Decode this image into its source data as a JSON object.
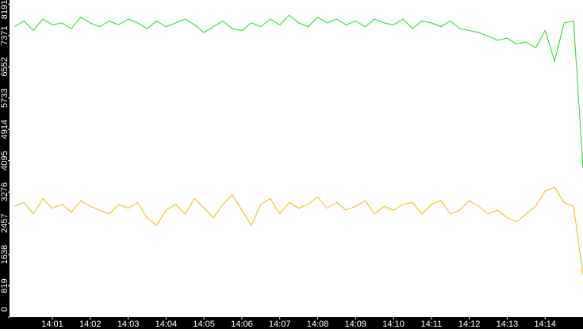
{
  "chart_data": {
    "type": "line",
    "x": [
      840,
      840.25,
      840.5,
      840.75,
      841,
      841.25,
      841.5,
      841.75,
      842,
      842.25,
      842.5,
      842.75,
      843,
      843.25,
      843.5,
      843.75,
      844,
      844.25,
      844.5,
      844.75,
      845,
      845.25,
      845.5,
      845.75,
      846,
      846.25,
      846.5,
      846.75,
      847,
      847.25,
      847.5,
      847.75,
      848,
      848.25,
      848.5,
      848.75,
      849,
      849.25,
      849.5,
      849.75,
      850,
      850.25,
      850.5,
      850.75,
      851,
      851.25,
      851.5,
      851.75,
      852,
      852.25,
      852.5,
      852.75,
      853,
      853.25,
      853.5,
      853.75,
      854,
      854.25,
      854.5,
      854.75,
      855
    ],
    "xlim": [
      839.87,
      855
    ],
    "xticks": [
      {
        "value": 841,
        "label": "14:01"
      },
      {
        "value": 842,
        "label": "14:02"
      },
      {
        "value": 843,
        "label": "14:03"
      },
      {
        "value": 844,
        "label": "14:04"
      },
      {
        "value": 845,
        "label": "14:05"
      },
      {
        "value": 846,
        "label": "14:06"
      },
      {
        "value": 847,
        "label": "14:07"
      },
      {
        "value": 848,
        "label": "14:08"
      },
      {
        "value": 849,
        "label": "14:09"
      },
      {
        "value": 850,
        "label": "14:10"
      },
      {
        "value": 851,
        "label": "14:11"
      },
      {
        "value": 852,
        "label": "14:12"
      },
      {
        "value": 853,
        "label": "14:13"
      },
      {
        "value": 854,
        "label": "14:14"
      }
    ],
    "ylim": [
      0,
      8300
    ],
    "yticks": [
      0,
      819,
      1638,
      2457,
      3276,
      4095,
      4914,
      5733,
      6552,
      7371,
      8191
    ],
    "grid": false,
    "series": [
      {
        "color": "#22dd22",
        "values": [
          7600,
          7750,
          7500,
          7800,
          7650,
          7700,
          7550,
          7850,
          7700,
          7600,
          7750,
          7650,
          7800,
          7700,
          7550,
          7750,
          7600,
          7700,
          7800,
          7650,
          7450,
          7600,
          7750,
          7550,
          7500,
          7700,
          7600,
          7800,
          7650,
          7900,
          7700,
          7600,
          7850,
          7700,
          7800,
          7650,
          7750,
          7600,
          7800,
          7700,
          7650,
          7800,
          7550,
          7750,
          7700,
          7600,
          7750,
          7550,
          7500,
          7450,
          7350,
          7250,
          7300,
          7150,
          7200,
          7050,
          7500,
          6700,
          7700,
          7750,
          3900
        ]
      },
      {
        "color": "#f0c000",
        "values": [
          2900,
          3000,
          2700,
          3100,
          2850,
          2950,
          2750,
          3050,
          2900,
          2800,
          2700,
          2950,
          2850,
          3000,
          2600,
          2400,
          2800,
          2950,
          2700,
          3100,
          2850,
          2600,
          2950,
          3200,
          2800,
          2400,
          2950,
          3100,
          2700,
          3000,
          2850,
          2950,
          3150,
          2850,
          3000,
          2800,
          2900,
          3050,
          2700,
          2900,
          2800,
          2950,
          3000,
          2700,
          2950,
          3050,
          2700,
          2800,
          3050,
          2900,
          2700,
          2800,
          2600,
          2500,
          2700,
          2900,
          3300,
          3400,
          3000,
          2900,
          1100
        ]
      }
    ]
  }
}
